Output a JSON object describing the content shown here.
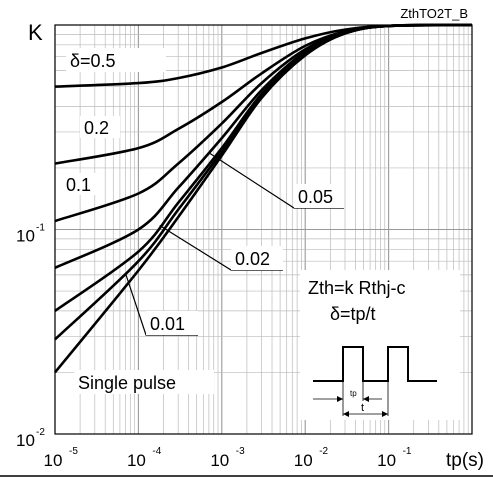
{
  "chart_data": {
    "type": "line",
    "title": "ZthTO2T_B",
    "ylabel": "K",
    "xlabel": "tp(s)",
    "xscale": "log",
    "yscale": "log",
    "xlim": [
      1e-05,
      1
    ],
    "ylim": [
      0.01,
      1
    ],
    "grid": true,
    "x_ticks": [
      {
        "mant": "10",
        "exp": "-5"
      },
      {
        "mant": "10",
        "exp": "-4"
      },
      {
        "mant": "10",
        "exp": "-3"
      },
      {
        "mant": "10",
        "exp": "-2"
      },
      {
        "mant": "10",
        "exp": "-1"
      }
    ],
    "y_ticks": [
      {
        "mant": "10",
        "exp": "-2"
      },
      {
        "mant": "10",
        "exp": "-1"
      }
    ],
    "annotations": [
      "Zth=k Rthj-c",
      "δ=tp/t"
    ],
    "inset_labels": {
      "tp": "tp",
      "t": "t"
    },
    "series": [
      {
        "name": "δ=0.5",
        "x": [
          1e-05,
          0.0001,
          0.0003,
          0.001,
          0.003,
          0.01,
          0.03,
          0.1,
          1
        ],
        "y": [
          0.5,
          0.52,
          0.55,
          0.62,
          0.73,
          0.86,
          0.95,
          0.99,
          1.0
        ]
      },
      {
        "name": "0.2",
        "x": [
          1e-05,
          0.0001,
          0.0003,
          0.001,
          0.003,
          0.01,
          0.03,
          0.1,
          1
        ],
        "y": [
          0.21,
          0.25,
          0.31,
          0.42,
          0.58,
          0.79,
          0.93,
          0.99,
          1.0
        ]
      },
      {
        "name": "0.1",
        "x": [
          1e-05,
          0.0001,
          0.0003,
          0.001,
          0.003,
          0.01,
          0.03,
          0.1,
          1
        ],
        "y": [
          0.11,
          0.15,
          0.21,
          0.33,
          0.52,
          0.76,
          0.92,
          0.99,
          1.0
        ]
      },
      {
        "name": "0.05",
        "x": [
          1e-05,
          0.0001,
          0.0003,
          0.001,
          0.003,
          0.01,
          0.03,
          0.1,
          1
        ],
        "y": [
          0.065,
          0.1,
          0.16,
          0.28,
          0.48,
          0.74,
          0.92,
          0.99,
          1.0
        ]
      },
      {
        "name": "0.02",
        "x": [
          1e-05,
          0.0001,
          0.0003,
          0.001,
          0.003,
          0.01,
          0.03,
          0.1,
          1
        ],
        "y": [
          0.04,
          0.078,
          0.135,
          0.25,
          0.46,
          0.72,
          0.91,
          0.99,
          1.0
        ]
      },
      {
        "name": "0.01",
        "x": [
          1e-05,
          0.0001,
          0.0003,
          0.001,
          0.003,
          0.01,
          0.03,
          0.1,
          1
        ],
        "y": [
          0.029,
          0.07,
          0.125,
          0.24,
          0.45,
          0.72,
          0.91,
          0.99,
          1.0
        ]
      },
      {
        "name": "Single pulse",
        "x": [
          1e-05,
          0.0001,
          0.0003,
          0.001,
          0.003,
          0.01,
          0.03,
          0.1,
          1
        ],
        "y": [
          0.02,
          0.063,
          0.115,
          0.23,
          0.44,
          0.71,
          0.91,
          0.99,
          1.0
        ]
      }
    ]
  }
}
